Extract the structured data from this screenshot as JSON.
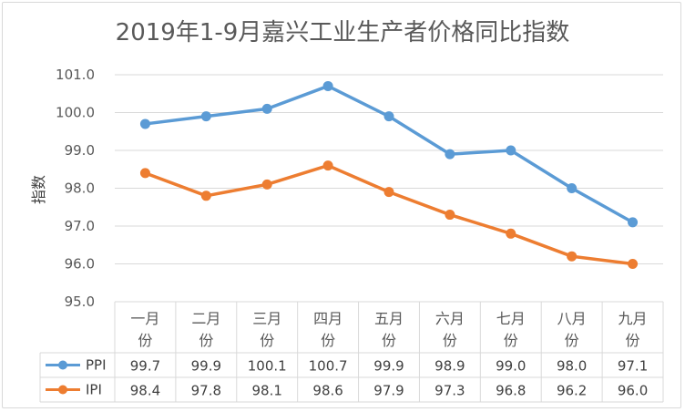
{
  "chart_data": {
    "type": "line",
    "title": "2019年1-9月嘉兴工业生产者价格同比指数",
    "ylabel": "指数",
    "xlabel": "",
    "ylim": [
      95.0,
      101.0
    ],
    "yticks": [
      "95.0",
      "96.0",
      "97.0",
      "98.0",
      "99.0",
      "100.0",
      "101.0"
    ],
    "grid": true,
    "legend": "data-table-left",
    "categories": [
      [
        "一月",
        "份"
      ],
      [
        "二月",
        "份"
      ],
      [
        "三月",
        "份"
      ],
      [
        "四月",
        "份"
      ],
      [
        "五月",
        "份"
      ],
      [
        "六月",
        "份"
      ],
      [
        "七月",
        "份"
      ],
      [
        "八月",
        "份"
      ],
      [
        "九月",
        "份"
      ]
    ],
    "series": [
      {
        "name": "PPI",
        "color": "#5B9BD5",
        "values": [
          99.7,
          99.9,
          100.1,
          100.7,
          99.9,
          98.9,
          99.0,
          98.0,
          97.1
        ],
        "labels": [
          "99.7",
          "99.9",
          "100.1",
          "100.7",
          "99.9",
          "98.9",
          "99.0",
          "98.0",
          "97.1"
        ]
      },
      {
        "name": "IPI",
        "color": "#ED7D31",
        "values": [
          98.4,
          97.8,
          98.1,
          98.6,
          97.9,
          97.3,
          96.8,
          96.2,
          96.0
        ],
        "labels": [
          "98.4",
          "97.8",
          "98.1",
          "98.6",
          "97.9",
          "97.3",
          "96.8",
          "96.2",
          "96.0"
        ]
      }
    ]
  }
}
